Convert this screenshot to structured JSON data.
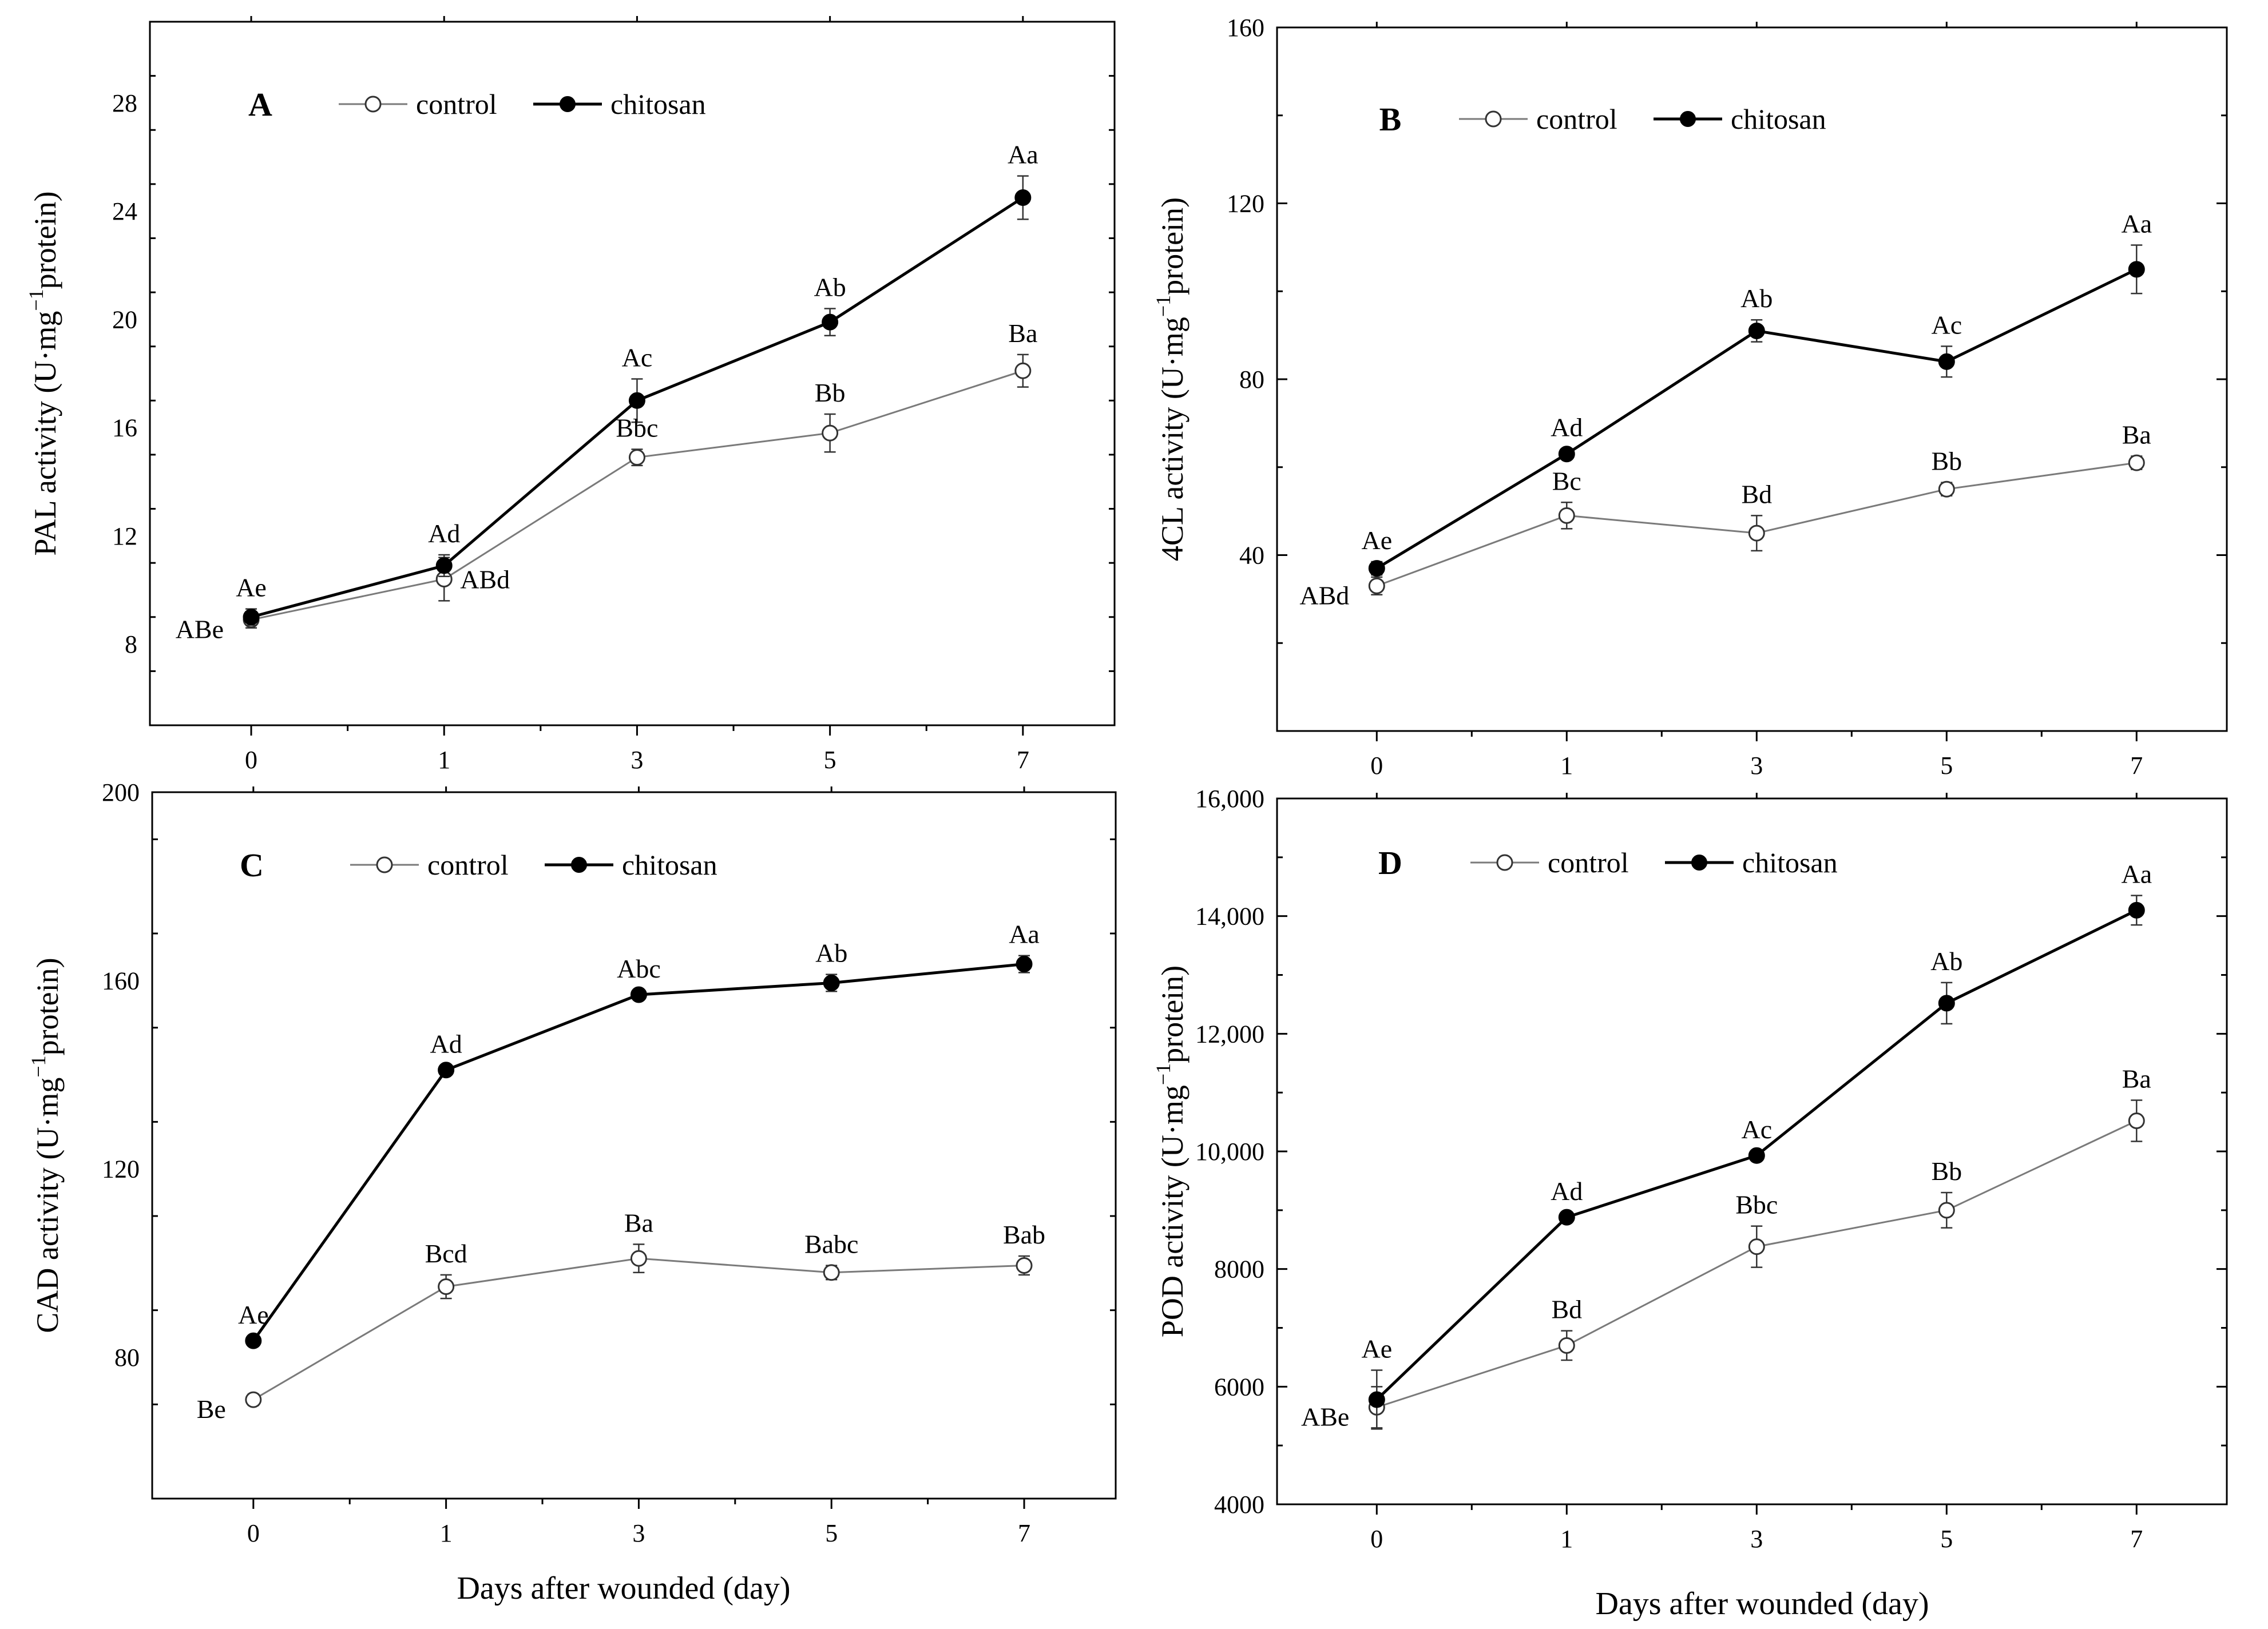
{
  "xlabel": "Days after wounded (day)",
  "legend": {
    "control": "control",
    "chitosan": "chitosan"
  },
  "colors": {
    "control": "#7a7a7a",
    "chitosan": "#000000",
    "axis": "#000000"
  },
  "chart_data": [
    {
      "type": "line",
      "panel": "A",
      "ylabel": "PAL activity (U·mg",
      "ylabel_sup": "−1",
      "ylabel_end": "protein)",
      "categories": [
        "0",
        "1",
        "3",
        "5",
        "7"
      ],
      "ylim": [
        5,
        31
      ],
      "yticks": [
        8,
        12,
        16,
        20,
        24,
        28
      ],
      "yticklabels": [
        "8",
        "12",
        "16",
        "20",
        "24",
        "28"
      ],
      "series": [
        {
          "name": "control",
          "values": [
            8.9,
            10.4,
            14.9,
            15.8,
            18.1
          ],
          "errors": [
            0.3,
            0.8,
            0.3,
            0.7,
            0.6
          ],
          "labels": [
            "ABe",
            "ABd",
            "Bbc",
            "Bb",
            "Ba"
          ]
        },
        {
          "name": "chitosan",
          "values": [
            9.0,
            10.9,
            17.0,
            19.9,
            24.5
          ],
          "errors": [
            0.3,
            0.4,
            0.8,
            0.5,
            0.8
          ],
          "labels": [
            "Ae",
            "Ad",
            "Ac",
            "Ab",
            "Aa"
          ]
        }
      ]
    },
    {
      "type": "line",
      "panel": "B",
      "ylabel": "4CL activity (U·mg",
      "ylabel_sup": "−1",
      "ylabel_end": "protein)",
      "categories": [
        "0",
        "1",
        "3",
        "5",
        "7"
      ],
      "ylim": [
        0,
        160
      ],
      "yticks": [
        40,
        80,
        120,
        160
      ],
      "yticklabels": [
        "40",
        "80",
        "120",
        "160"
      ],
      "series": [
        {
          "name": "control",
          "values": [
            33,
            49,
            45,
            55,
            61
          ],
          "errors": [
            2,
            3,
            4,
            1.5,
            1.5
          ],
          "labels": [
            "ABd",
            "Bc",
            "Bd",
            "Bb",
            "Ba"
          ]
        },
        {
          "name": "chitosan",
          "values": [
            37,
            63,
            91,
            84,
            105
          ],
          "errors": [
            1.5,
            1.2,
            2.5,
            3.5,
            5.5
          ],
          "labels": [
            "Ae",
            "Ad",
            "Ab",
            "Ac",
            "Aa"
          ]
        }
      ]
    },
    {
      "type": "line",
      "panel": "C",
      "ylabel": "CAD activity (U·mg",
      "ylabel_sup": "−1",
      "ylabel_end": "protein)",
      "categories": [
        "0",
        "1",
        "3",
        "5",
        "7"
      ],
      "ylim": [
        50,
        200
      ],
      "yticks": [
        80,
        120,
        160,
        200
      ],
      "yticklabels": [
        "80",
        "120",
        "160",
        "200"
      ],
      "series": [
        {
          "name": "control",
          "values": [
            71,
            95,
            101,
            98,
            99.5
          ],
          "errors": [
            1.2,
            2.5,
            3,
            1.5,
            2
          ],
          "labels": [
            "Be",
            "Bcd",
            "Ba",
            "Babc",
            "Bab"
          ]
        },
        {
          "name": "chitosan",
          "values": [
            83.5,
            141,
            157,
            159.5,
            163.5
          ],
          "errors": [
            1,
            1,
            1,
            1.8,
            1.8
          ],
          "labels": [
            "Ae",
            "Ad",
            "Abc",
            "Ab",
            "Aa"
          ]
        }
      ]
    },
    {
      "type": "line",
      "panel": "D",
      "ylabel": "POD activity (U·mg",
      "ylabel_sup": "−1",
      "ylabel_end": "protein)",
      "categories": [
        "0",
        "1",
        "3",
        "5",
        "7"
      ],
      "ylim": [
        4000,
        16000
      ],
      "yticks": [
        4000,
        6000,
        8000,
        10000,
        12000,
        14000,
        16000
      ],
      "yticklabels": [
        "4000",
        "6000",
        "8000",
        "10,000",
        "12,000",
        "14,000",
        "16,000"
      ],
      "series": [
        {
          "name": "control",
          "values": [
            5650,
            6700,
            8380,
            9000,
            10520
          ],
          "errors": [
            350,
            250,
            350,
            300,
            350
          ],
          "labels": [
            "ABe",
            "Bd",
            "Bbc",
            "Bb",
            "Ba"
          ]
        },
        {
          "name": "chitosan",
          "values": [
            5780,
            8880,
            9930,
            12520,
            14100
          ],
          "errors": [
            500,
            80,
            80,
            350,
            250
          ],
          "labels": [
            "Ae",
            "Ad",
            "Ac",
            "Ab",
            "Aa"
          ]
        }
      ]
    }
  ]
}
